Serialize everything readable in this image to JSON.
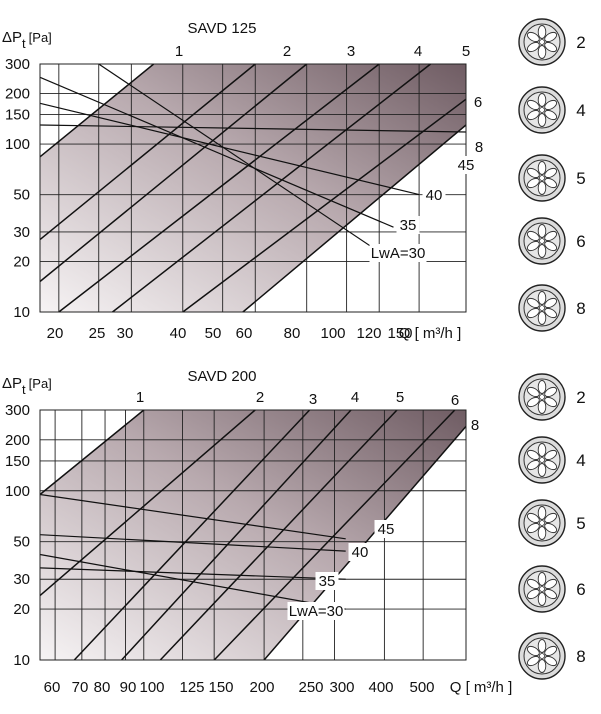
{
  "chart_data": [
    {
      "type": "line",
      "title": "SAVD 125",
      "ylabel_main": "ΔP",
      "ylabel_sub": "t",
      "ylabel_unit": "[Pa]",
      "xlabel": "Q [ m³/h ]",
      "scale": "log-log",
      "xlim": [
        18,
        195
      ],
      "ylim": [
        10,
        300
      ],
      "x_ticks": [
        "20",
        "25",
        "30",
        "40",
        "50",
        "60",
        "80",
        "100",
        "120",
        "150"
      ],
      "y_ticks": [
        "10",
        "20",
        "30",
        "50",
        "100",
        "150",
        "200",
        "300"
      ],
      "setting_labels": [
        "1",
        "2",
        "3",
        "4",
        "5",
        "6",
        "8"
      ],
      "noise_labels": [
        "LwA=30",
        "35",
        "40",
        "45"
      ],
      "damper_settings": [
        {
          "label": "1",
          "points": [
            [
              34,
              300
            ],
            [
              18,
              84
            ]
          ]
        },
        {
          "label": "2",
          "points": [
            [
              60,
              300
            ],
            [
              18,
              27
            ]
          ]
        },
        {
          "label": "3",
          "points": [
            [
              80,
              300
            ],
            [
              18,
              15.2
            ]
          ]
        },
        {
          "label": "4",
          "points": [
            [
              120,
              300
            ],
            [
              20,
              10
            ]
          ]
        },
        {
          "label": "5",
          "points": [
            [
              160,
              300
            ],
            [
              27,
              10
            ]
          ]
        },
        {
          "label": "6",
          "points": [
            [
              195,
              185
            ],
            [
              40,
              10
            ]
          ]
        },
        {
          "label": "8",
          "points": [
            [
              195,
              130
            ],
            [
              56,
              10
            ]
          ]
        }
      ],
      "noise_lines": [
        {
          "label": "45",
          "points": [
            [
              18,
              130
            ],
            [
              195,
              118
            ]
          ]
        },
        {
          "label": "40",
          "points": [
            [
              18,
              175
            ],
            [
              150,
              50
            ]
          ]
        },
        {
          "label": "35",
          "points": [
            [
              18,
              250
            ],
            [
              130,
              32
            ]
          ]
        },
        {
          "label": "LwA=30",
          "points": [
            [
              25,
              300
            ],
            [
              130,
              20
            ]
          ]
        }
      ],
      "valid_region": [
        [
          34,
          300
        ],
        [
          195,
          300
        ],
        [
          195,
          130
        ],
        [
          56,
          10
        ],
        [
          18,
          10
        ],
        [
          18,
          84
        ]
      ]
    },
    {
      "type": "line",
      "title": "SAVD 200",
      "ylabel_main": "ΔP",
      "ylabel_sub": "t",
      "ylabel_unit": "[Pa]",
      "xlabel": "Q [ m³/h ]",
      "scale": "log-log",
      "xlim": [
        55,
        640
      ],
      "ylim": [
        10,
        300
      ],
      "x_ticks": [
        "60",
        "70",
        "80",
        "90",
        "100",
        "125",
        "150",
        "200",
        "250",
        "300",
        "400",
        "500"
      ],
      "y_ticks": [
        "10",
        "20",
        "30",
        "50",
        "100",
        "150",
        "200",
        "300"
      ],
      "setting_labels": [
        "1",
        "2",
        "3",
        "4",
        "5",
        "6",
        "8"
      ],
      "noise_labels": [
        "LwA=30",
        "35",
        "40",
        "45"
      ],
      "damper_settings": [
        {
          "label": "1",
          "points": [
            [
              100,
              300
            ],
            [
              55,
              95
            ]
          ]
        },
        {
          "label": "2",
          "points": [
            [
              190,
              300
            ],
            [
              55,
              24
            ]
          ]
        },
        {
          "label": "3",
          "points": [
            [
              260,
              300
            ],
            [
              67,
              10
            ]
          ]
        },
        {
          "label": "4",
          "points": [
            [
              330,
              300
            ],
            [
              88,
              10
            ]
          ]
        },
        {
          "label": "5",
          "points": [
            [
              430,
              300
            ],
            [
              110,
              10
            ]
          ]
        },
        {
          "label": "6",
          "points": [
            [
              600,
              300
            ],
            [
              150,
              10
            ]
          ]
        },
        {
          "label": "8",
          "points": [
            [
              640,
              240
            ],
            [
              200,
              10
            ]
          ]
        }
      ],
      "noise_lines": [
        {
          "label": "45",
          "points": [
            [
              55,
              95
            ],
            [
              320,
              52
            ]
          ]
        },
        {
          "label": "40",
          "points": [
            [
              55,
              55
            ],
            [
              320,
              44
            ]
          ]
        },
        {
          "label": "35",
          "points": [
            [
              55,
              35
            ],
            [
              320,
              30
            ]
          ]
        },
        {
          "label": "LwA=30",
          "points": [
            [
              55,
              42
            ],
            [
              320,
              20
            ]
          ]
        }
      ],
      "valid_region": [
        [
          100,
          300
        ],
        [
          640,
          300
        ],
        [
          640,
          240
        ],
        [
          200,
          10
        ],
        [
          55,
          10
        ],
        [
          55,
          95
        ]
      ]
    }
  ],
  "dampers": {
    "top": [
      "2",
      "4",
      "5",
      "6",
      "8"
    ],
    "bottom": [
      "2",
      "4",
      "5",
      "6",
      "8"
    ]
  },
  "colors": {
    "shade_light": "#f4f1f2",
    "shade_dark": "#7c6a70",
    "line": "#111111",
    "grid": "#222222"
  }
}
